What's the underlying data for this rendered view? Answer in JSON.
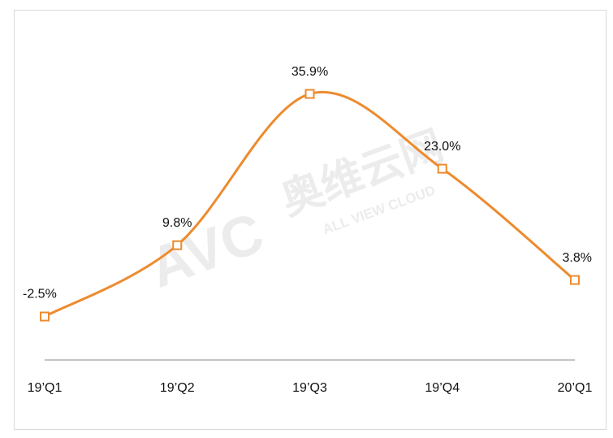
{
  "chart_data": {
    "type": "line",
    "categories": [
      "19’Q1",
      "19’Q2",
      "19’Q3",
      "19’Q4",
      "20’Q1"
    ],
    "values": [
      -2.5,
      9.8,
      35.9,
      23.0,
      3.8
    ],
    "value_labels": [
      "-2.5%",
      "9.8%",
      "35.9%",
      "23.0%",
      "3.8%"
    ],
    "color": "#ED8B2E",
    "ylim": [
      -10,
      50
    ],
    "watermark": "AVC",
    "watermark_cn": "奥维云网",
    "watermark_en": "ALL VIEW CLOUD"
  }
}
